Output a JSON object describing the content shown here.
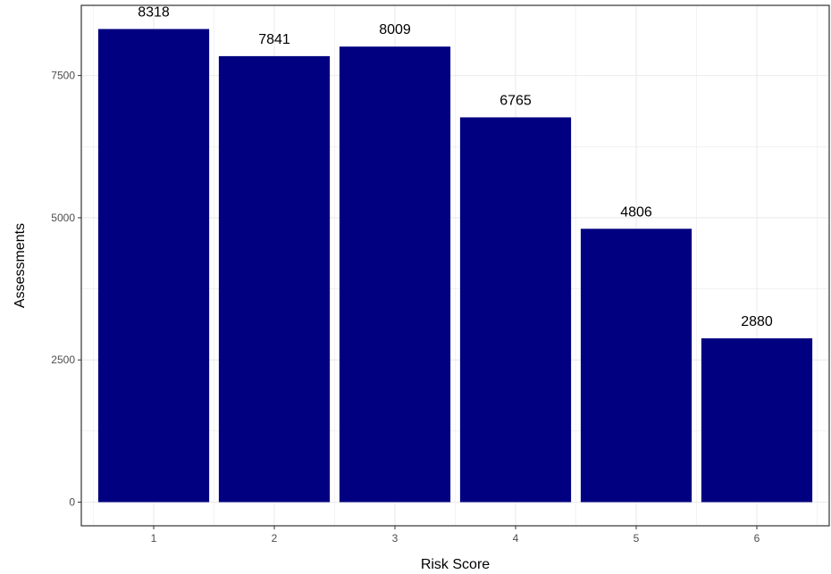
{
  "chart_data": {
    "type": "bar",
    "categories": [
      "1",
      "2",
      "3",
      "4",
      "5",
      "6"
    ],
    "values": [
      8318,
      7841,
      8009,
      6765,
      4806,
      2880
    ],
    "data_labels": [
      "8318",
      "7841",
      "8009",
      "6765",
      "4806",
      "2880"
    ],
    "xlabel": "Risk Score",
    "ylabel": "Assessments",
    "ylim": [
      -415.9,
      8733.9
    ],
    "yticks": [
      0,
      2500,
      5000,
      7500
    ],
    "ytick_labels": [
      "0",
      "2500",
      "5000",
      "7500"
    ],
    "minor_gridlines": [
      1250,
      3750,
      6250,
      8750
    ],
    "grid": true,
    "legend": "none",
    "bar_color": "#000080",
    "grid_color": "#ebebeb",
    "panel_border_color": "#333333"
  }
}
